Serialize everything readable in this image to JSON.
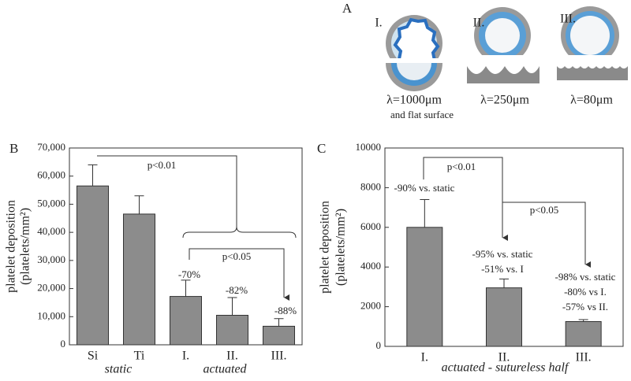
{
  "panel_a": {
    "letter": "A",
    "labels": [
      "I.",
      "II.",
      "III."
    ],
    "wavelengths": [
      "λ=1000μm",
      "λ=250μm",
      "λ=80μm"
    ],
    "note": "and flat surface"
  },
  "chart_data": [
    {
      "type": "bar",
      "panel": "B",
      "categories": [
        "Si",
        "Ti",
        "I.",
        "II.",
        "III."
      ],
      "values": [
        56500,
        46500,
        17200,
        10500,
        6600
      ],
      "errors": [
        7500,
        6500,
        5800,
        6300,
        2700
      ],
      "color": "#8c8c8c",
      "ylim": [
        0,
        70000
      ],
      "yticks": [
        0,
        {
          "value": 10000,
          "label": "10,000"
        },
        {
          "value": 20000,
          "label": "20,000"
        },
        {
          "value": 30000,
          "label": "30,000"
        },
        {
          "value": 40000,
          "label": "40,000"
        },
        {
          "value": 50000,
          "label": "50,000"
        },
        {
          "value": 60000,
          "label": "60,000"
        },
        {
          "value": 70000,
          "label": "70,000"
        }
      ],
      "ylabel": [
        "platelet deposition",
        "(platelets/mm²)"
      ],
      "group_labels": [
        "static",
        "actuated"
      ],
      "annotations": [
        "p<0.01",
        "p<0.05",
        "-70%",
        "-82%",
        "-88%"
      ]
    },
    {
      "type": "bar",
      "panel": "C",
      "categories": [
        "I.",
        "II.",
        "III."
      ],
      "values": [
        6000,
        2950,
        1250
      ],
      "errors": [
        1400,
        450,
        100
      ],
      "color": "#8c8c8c",
      "ylim": [
        0,
        10000
      ],
      "yticks": [
        0,
        2000,
        4000,
        6000,
        8000,
        10000
      ],
      "ylabel": [
        "platelet deposition",
        "(platelets/mm²)"
      ],
      "xlabel": "actuated - sutureless half",
      "annotations": [
        "p<0.01",
        "p<0.05",
        "-90% vs. static",
        "-95% vs. static",
        "-51% vs. I",
        "-98% vs. static",
        "-80% vs I.",
        "-57% vs II."
      ]
    }
  ]
}
